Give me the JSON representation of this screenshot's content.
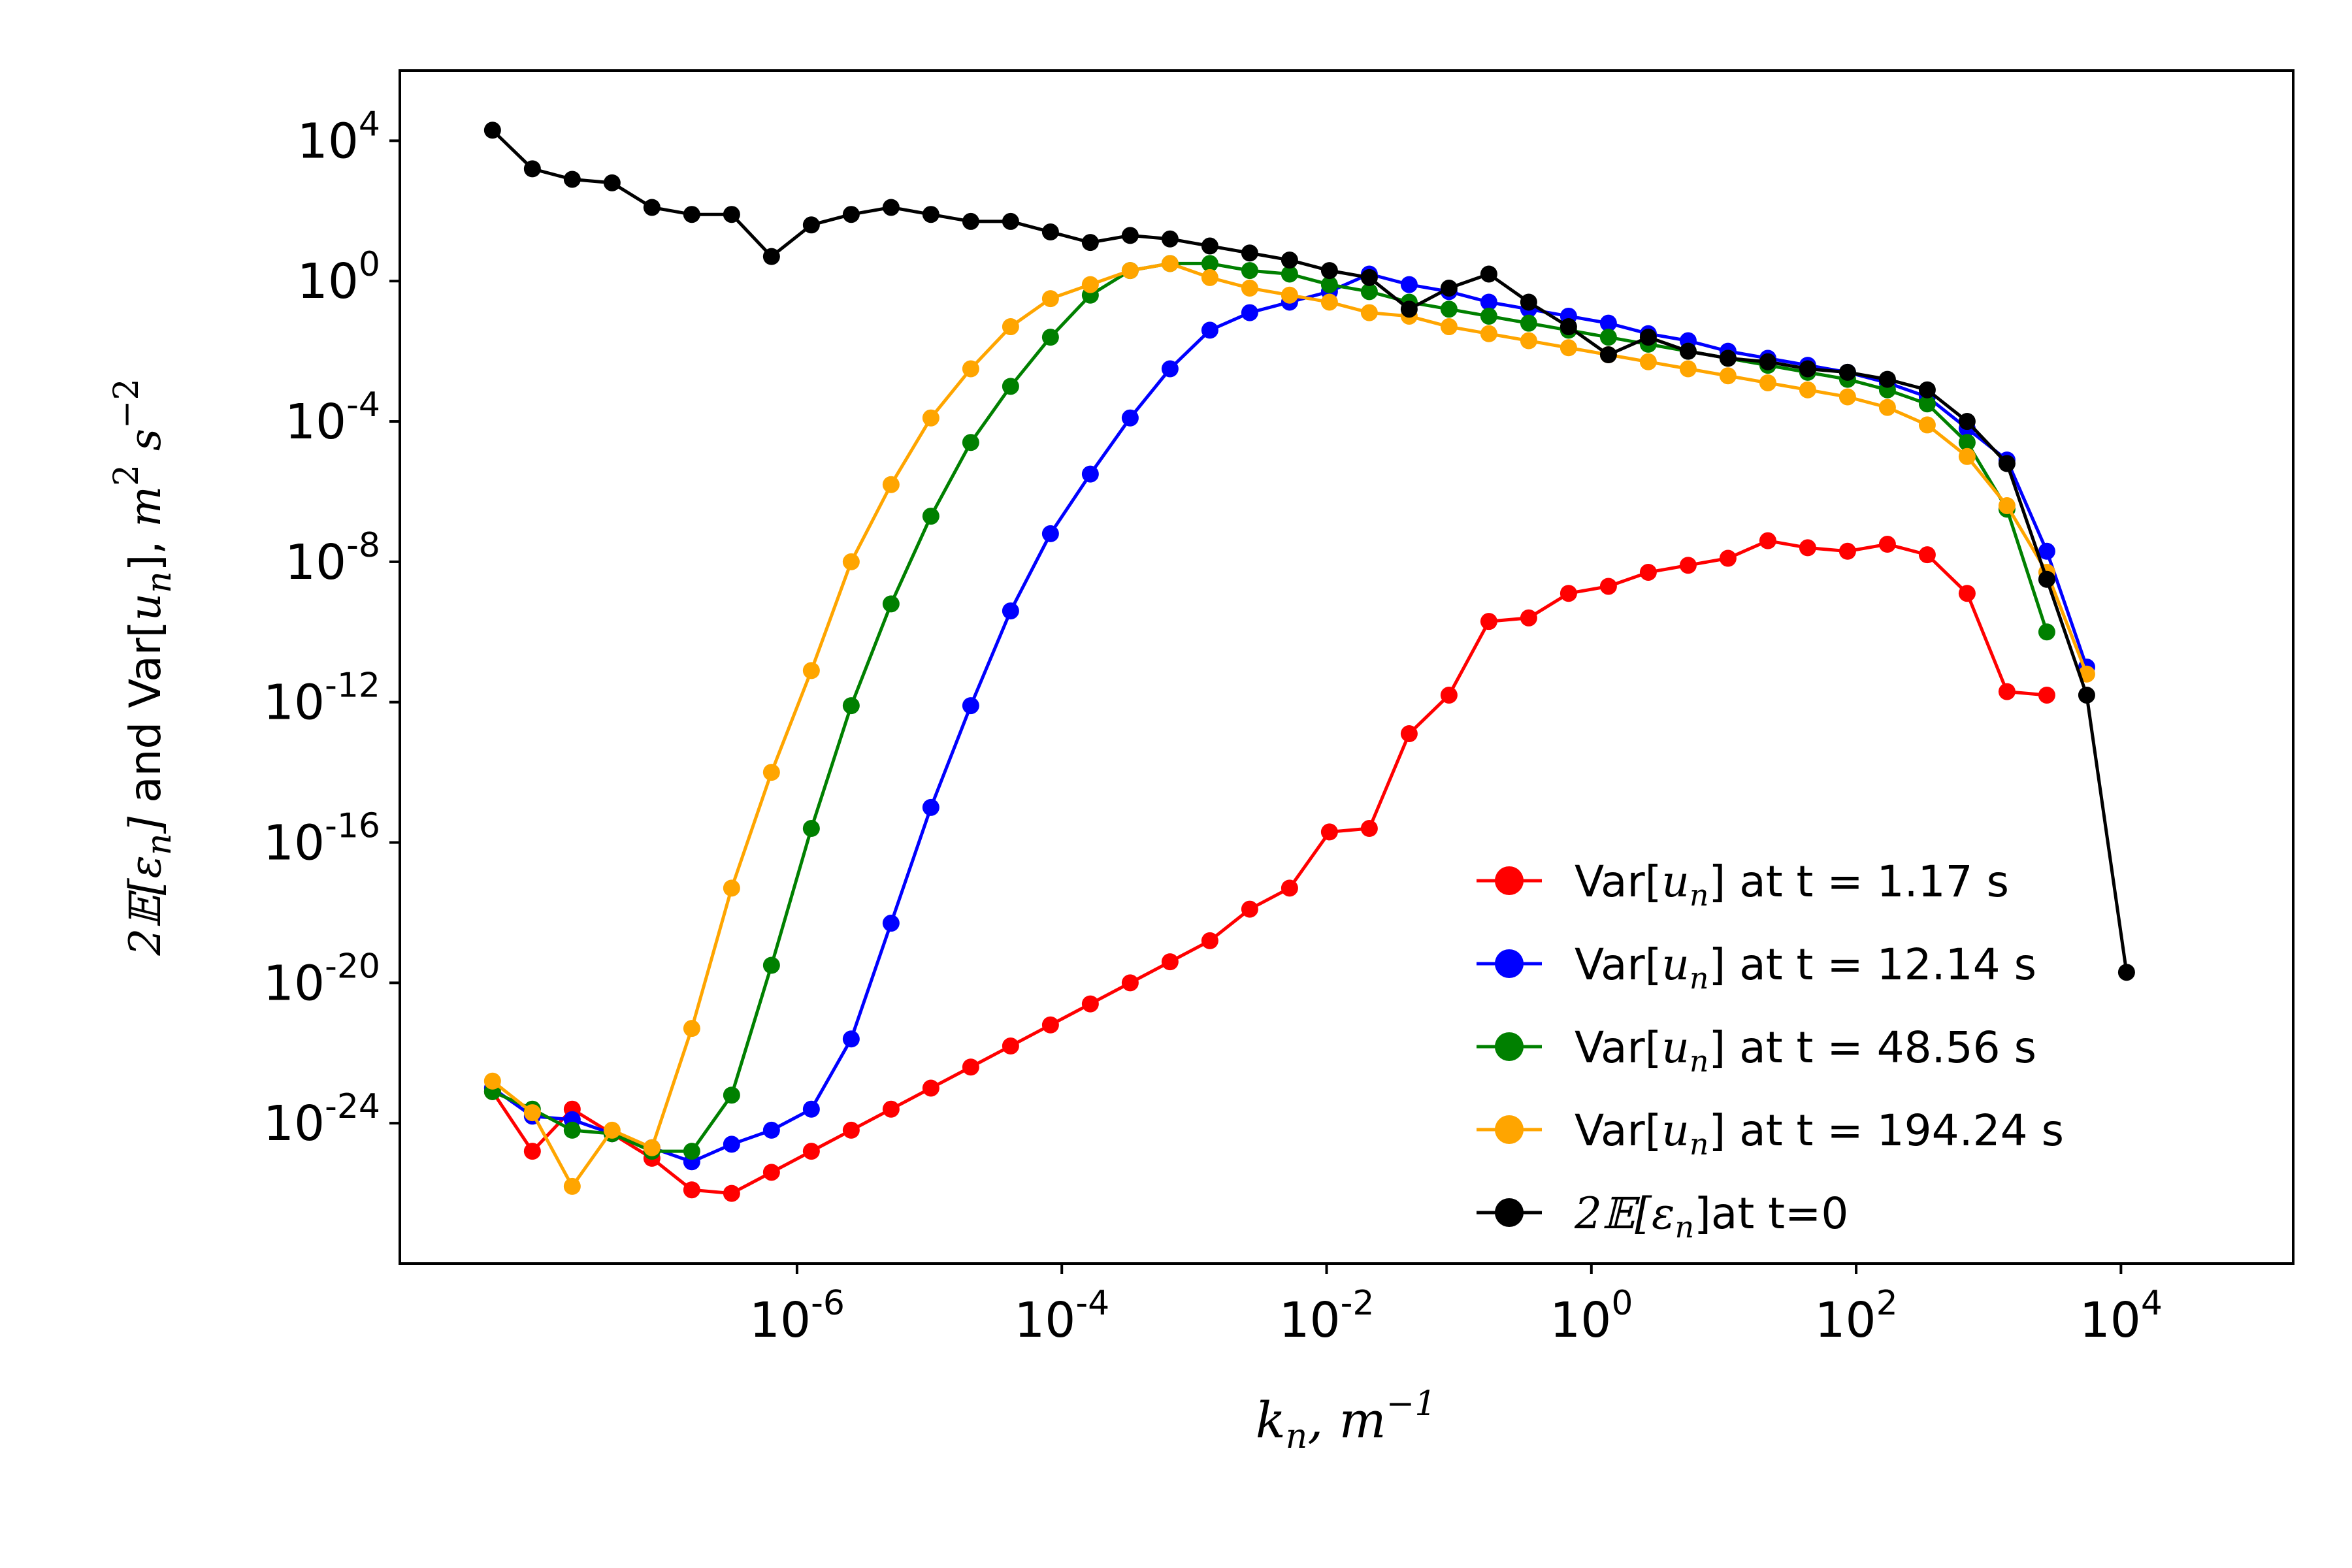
{
  "chart_data": {
    "type": "line",
    "xscale": "log",
    "yscale": "log",
    "xlabel": "k_n, m^-1",
    "ylabel": "2𝔼[ε_n] and Var[u_n], m^2 s^-2",
    "xlim": [
      1e-09,
      200000.0
    ],
    "ylim": [
      1e-28,
      1000000.0
    ],
    "x_ticks": [
      {
        "value": 1e-06,
        "base": "10",
        "exp": "-6"
      },
      {
        "value": 0.0001,
        "base": "10",
        "exp": "-4"
      },
      {
        "value": 0.01,
        "base": "10",
        "exp": "-2"
      },
      {
        "value": 1,
        "base": "10",
        "exp": "0"
      },
      {
        "value": 100.0,
        "base": "10",
        "exp": "2"
      },
      {
        "value": 10000.0,
        "base": "10",
        "exp": "4"
      }
    ],
    "y_ticks": [
      {
        "value": 10000.0,
        "base": "10",
        "exp": "4"
      },
      {
        "value": 1,
        "base": "10",
        "exp": "0"
      },
      {
        "value": 0.0001,
        "base": "10",
        "exp": "-4"
      },
      {
        "value": 1e-08,
        "base": "10",
        "exp": "-8"
      },
      {
        "value": 1e-12,
        "base": "10",
        "exp": "-12"
      },
      {
        "value": 1e-16,
        "base": "10",
        "exp": "-16"
      },
      {
        "value": 1e-20,
        "base": "10",
        "exp": "-20"
      },
      {
        "value": 1e-24,
        "base": "10",
        "exp": "-24"
      }
    ],
    "grid": false,
    "legend_position": "bottom-right",
    "x_log10": [
      -8.3,
      -7.7,
      -7.1,
      -6.5,
      -5.9,
      -5.3,
      -4.7,
      -4.1,
      -3.5,
      -2.9,
      -2.3,
      -1.7,
      -1.1,
      -0.5,
      0.1,
      0.7,
      1.3,
      1.9,
      2.5,
      3.1,
      3.7,
      4.3
    ],
    "series": [
      {
        "name": "Var[u_n] at t = 1.17 s",
        "legend_prefix": "Var[",
        "legend_math": "u",
        "legend_sub": "n",
        "legend_suffix": "] at t = 1.17 s",
        "color": "#ff0000",
        "log10_values": [
          -23.1,
          -24.8,
          -23.6,
          -24.3,
          -25.0,
          -25.9,
          -26.0,
          -25.4,
          -24.8,
          -24.2,
          -23.6,
          -23.0,
          -22.4,
          -21.8,
          -21.2,
          -20.6,
          -20.0,
          -19.4,
          -18.8,
          -17.9,
          -17.3,
          -15.7,
          -15.6,
          -12.9,
          -11.8,
          -9.7,
          -9.6,
          -8.9,
          -8.7,
          -8.3,
          -8.1,
          -7.9,
          -7.4,
          -7.6,
          -7.7,
          -7.5,
          -7.8,
          -8.9,
          -11.7,
          -11.8
        ],
        "log10_x_note": "",
        "x_mode": "fine"
      },
      {
        "name": "Var[u_n] at t = 12.14 s",
        "legend_prefix": "Var[",
        "legend_math": "u",
        "legend_sub": "n",
        "legend_suffix": "] at t = 12.14 s",
        "color": "#0000ff",
        "log10_values": [
          -23.0,
          -23.8,
          -23.9,
          -24.3,
          -24.7,
          -25.1,
          -24.6,
          -24.2,
          -23.6,
          -21.6,
          -18.3,
          -15.0,
          -12.1,
          -9.4,
          -7.2,
          -5.5,
          -3.9,
          -2.5,
          -1.4,
          -0.9,
          -0.6,
          -0.3,
          0.2,
          -0.1,
          -0.3,
          -0.6,
          -0.8,
          -1.0,
          -1.2,
          -1.5,
          -1.7,
          -2.0,
          -2.2,
          -2.4,
          -2.6,
          -2.9,
          -3.3,
          -4.2,
          -5.1,
          -7.7,
          -11.0
        ],
        "x_mode": "fine"
      },
      {
        "name": "Var[u_n] at t = 48.56 s",
        "legend_prefix": "Var[",
        "legend_math": "u",
        "legend_sub": "n",
        "legend_suffix": "] at t = 48.56 s",
        "color": "#008000",
        "log10_values": [
          -23.1,
          -23.6,
          -24.2,
          -24.3,
          -24.8,
          -24.8,
          -23.2,
          -19.5,
          -15.6,
          -12.1,
          -9.2,
          -6.7,
          -4.6,
          -3.0,
          -1.6,
          -0.4,
          0.3,
          0.5,
          0.5,
          0.3,
          0.2,
          -0.1,
          -0.3,
          -0.6,
          -0.8,
          -1.0,
          -1.2,
          -1.4,
          -1.6,
          -1.8,
          -2.0,
          -2.2,
          -2.4,
          -2.6,
          -2.8,
          -3.1,
          -3.5,
          -4.6,
          -6.5,
          -10.0
        ],
        "x_mode": "fine"
      },
      {
        "name": "Var[u_n] at t = 194.24 s",
        "legend_prefix": "Var[",
        "legend_math": "u",
        "legend_sub": "n",
        "legend_suffix": "] at t = 194.24 s",
        "color": "#ffa500",
        "log10_values": [
          -22.8,
          -23.7,
          -25.8,
          -24.2,
          -24.7,
          -21.3,
          -17.3,
          -14.0,
          -11.1,
          -8.0,
          -5.8,
          -3.9,
          -2.5,
          -1.3,
          -0.5,
          -0.1,
          0.3,
          0.5,
          0.1,
          -0.2,
          -0.4,
          -0.6,
          -0.9,
          -1.0,
          -1.3,
          -1.5,
          -1.7,
          -1.9,
          -2.1,
          -2.3,
          -2.5,
          -2.7,
          -2.9,
          -3.1,
          -3.3,
          -3.6,
          -4.1,
          -5.0,
          -6.4,
          -8.3,
          -11.2
        ],
        "x_mode": "fine"
      },
      {
        "name": "2𝔼[ε_n]at t=0",
        "legend_prefix": "2",
        "legend_math": "𝔼[ε",
        "legend_sub": "n",
        "legend_suffix": "]at t=0",
        "legend_prefix_math": true,
        "color": "#000000",
        "log10_values": [
          4.3,
          3.2,
          2.9,
          2.8,
          2.1,
          1.9,
          1.9,
          0.7,
          1.6,
          1.9,
          2.1,
          1.9,
          1.7,
          1.7,
          1.4,
          1.1,
          1.3,
          1.2,
          1.0,
          0.8,
          0.6,
          0.3,
          0.1,
          -0.8,
          -0.2,
          0.2,
          -0.6,
          -1.3,
          -2.1,
          -1.6,
          -2.0,
          -2.2,
          -2.3,
          -2.5,
          -2.6,
          -2.8,
          -3.1,
          -4.0,
          -5.2,
          -8.5,
          -11.8,
          -19.7
        ]
      }
    ]
  }
}
